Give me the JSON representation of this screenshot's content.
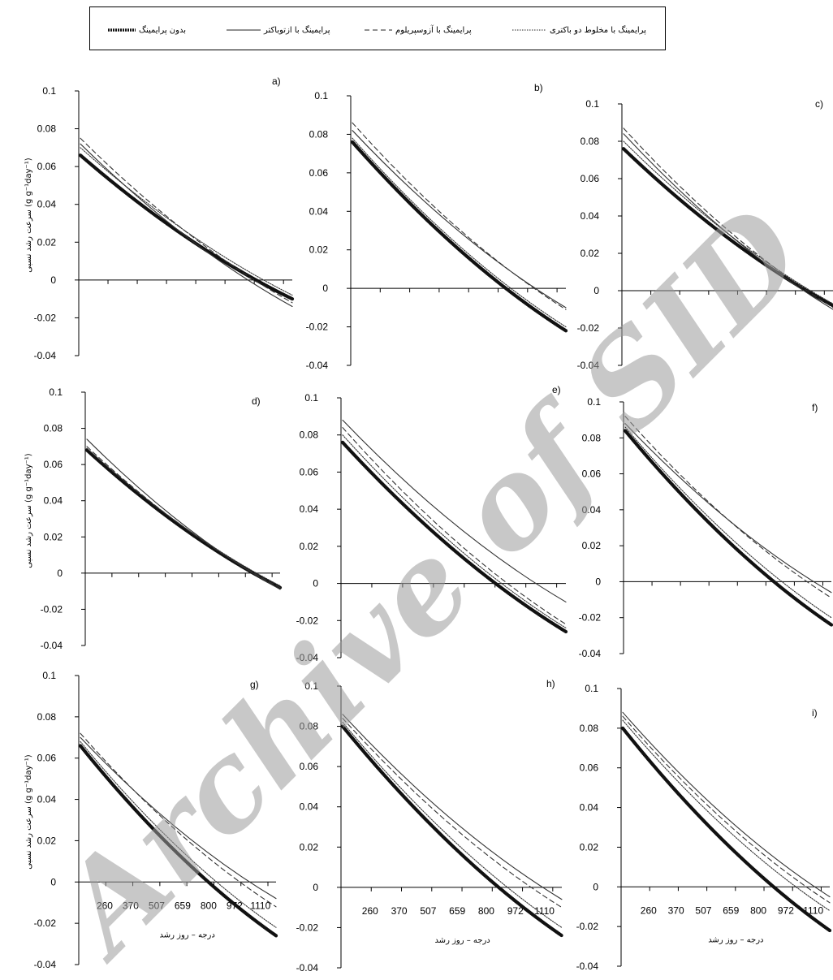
{
  "legend": {
    "items": [
      {
        "label": "پرایمینگ با مخلوط دو باکتری",
        "style": "dotted"
      },
      {
        "label": "پرایمینگ با آزوسپریلوم",
        "style": "dashed"
      },
      {
        "label": "پرایمینگ با ازتوباکتر",
        "style": "solid-thin"
      },
      {
        "label": "بدون پرایمینگ",
        "style": "solid-thick"
      }
    ]
  },
  "y_axis_label": "سرعت رشد نسبی (g g⁻¹day⁻¹)",
  "x_axis_label": "درجه – روز رشد",
  "watermark": "Archive of SID",
  "chart_data": [
    {
      "panel": "a)",
      "type": "line",
      "ylim": [
        -0.04,
        0.1
      ],
      "yticks": [
        "0.1",
        "0.08",
        "0.06",
        "0.04",
        "0.02",
        "0",
        "-0.02",
        "-0.04"
      ],
      "xticks": [],
      "series": [
        {
          "style": "solid-thick",
          "values": [
            0.066,
            -0.01
          ]
        },
        {
          "style": "solid-thin",
          "values": [
            0.072,
            -0.014
          ]
        },
        {
          "style": "dashed",
          "values": [
            0.075,
            -0.012
          ]
        },
        {
          "style": "dotted",
          "values": [
            0.07,
            -0.008
          ]
        }
      ]
    },
    {
      "panel": "b)",
      "type": "line",
      "ylim": [
        -0.04,
        0.1
      ],
      "yticks": [
        "0.1",
        "0.08",
        "0.06",
        "0.04",
        "0.02",
        "0",
        "-0.02",
        "-0.04"
      ],
      "xticks": [],
      "series": [
        {
          "style": "solid-thick",
          "values": [
            0.076,
            -0.022
          ]
        },
        {
          "style": "solid-thin",
          "values": [
            0.082,
            -0.01
          ]
        },
        {
          "style": "dashed",
          "values": [
            0.086,
            -0.011
          ]
        },
        {
          "style": "dotted",
          "values": [
            0.078,
            -0.02
          ]
        }
      ]
    },
    {
      "panel": "c)",
      "type": "line",
      "ylim": [
        -0.04,
        0.1
      ],
      "yticks": [
        "0.1",
        "0.08",
        "0.06",
        "0.04",
        "0.02",
        "0",
        "-0.02",
        "-0.04"
      ],
      "xticks": [],
      "series": [
        {
          "style": "solid-thick",
          "values": [
            0.076,
            -0.008
          ]
        },
        {
          "style": "solid-thin",
          "values": [
            0.084,
            -0.01
          ]
        },
        {
          "style": "dashed",
          "values": [
            0.087,
            -0.009
          ]
        },
        {
          "style": "dotted",
          "values": [
            0.08,
            -0.007
          ]
        }
      ]
    },
    {
      "panel": "d)",
      "type": "line",
      "ylim": [
        -0.04,
        0.1
      ],
      "yticks": [
        "0.1",
        "0.08",
        "0.06",
        "0.04",
        "0.02",
        "0",
        "-0.02",
        "-0.04"
      ],
      "xticks": [],
      "series": [
        {
          "style": "solid-thick",
          "values": [
            0.068,
            -0.008
          ]
        },
        {
          "style": "solid-thin",
          "values": [
            0.074,
            -0.009
          ]
        },
        {
          "style": "dashed",
          "values": [
            0.07,
            -0.008
          ]
        },
        {
          "style": "dotted",
          "values": [
            0.069,
            -0.007
          ]
        }
      ]
    },
    {
      "panel": "e)",
      "type": "line",
      "ylim": [
        -0.04,
        0.1
      ],
      "yticks": [
        "0.1",
        "0.08",
        "0.06",
        "0.04",
        "0.02",
        "0",
        "-0.02",
        "-0.04"
      ],
      "xticks": [],
      "series": [
        {
          "style": "solid-thick",
          "values": [
            0.076,
            -0.026
          ]
        },
        {
          "style": "solid-thin",
          "values": [
            0.088,
            -0.01
          ]
        },
        {
          "style": "dashed",
          "values": [
            0.084,
            -0.022
          ]
        },
        {
          "style": "dotted",
          "values": [
            0.08,
            -0.024
          ]
        }
      ]
    },
    {
      "panel": "f)",
      "type": "line",
      "ylim": [
        -0.04,
        0.1
      ],
      "yticks": [
        "0.1",
        "0.08",
        "0.06",
        "0.04",
        "0.02",
        "0",
        "-0.02",
        "-0.04"
      ],
      "xticks": [],
      "series": [
        {
          "style": "solid-thick",
          "values": [
            0.084,
            -0.024
          ]
        },
        {
          "style": "solid-thin",
          "values": [
            0.088,
            -0.006
          ]
        },
        {
          "style": "dashed",
          "values": [
            0.092,
            -0.009
          ]
        },
        {
          "style": "dotted",
          "values": [
            0.086,
            -0.02
          ]
        }
      ]
    },
    {
      "panel": "g)",
      "type": "line",
      "ylim": [
        -0.04,
        0.1
      ],
      "yticks": [
        "0.1",
        "0.08",
        "0.06",
        "0.04",
        "0.02",
        "0",
        "-0.02",
        "-0.04"
      ],
      "xticks": [
        "260",
        "370",
        "507",
        "659",
        "800",
        "972",
        "1110"
      ],
      "series": [
        {
          "style": "solid-thick",
          "values": [
            0.066,
            -0.026
          ]
        },
        {
          "style": "solid-thin",
          "values": [
            0.07,
            -0.008
          ]
        },
        {
          "style": "dashed",
          "values": [
            0.072,
            -0.012
          ]
        },
        {
          "style": "dotted",
          "values": [
            0.068,
            -0.022
          ]
        }
      ]
    },
    {
      "panel": "h)",
      "type": "line",
      "ylim": [
        -0.04,
        0.1
      ],
      "yticks": [
        "0.1",
        "0.08",
        "0.06",
        "0.04",
        "0.02",
        "0",
        "-0.02",
        "-0.04"
      ],
      "xticks": [
        "260",
        "370",
        "507",
        "659",
        "800",
        "972",
        "1110"
      ],
      "series": [
        {
          "style": "solid-thick",
          "values": [
            0.08,
            -0.024
          ]
        },
        {
          "style": "solid-thin",
          "values": [
            0.086,
            -0.006
          ]
        },
        {
          "style": "dashed",
          "values": [
            0.084,
            -0.01
          ]
        },
        {
          "style": "dotted",
          "values": [
            0.082,
            -0.02
          ]
        }
      ]
    },
    {
      "panel": "i)",
      "type": "line",
      "ylim": [
        -0.04,
        0.1
      ],
      "yticks": [
        "0.1",
        "0.08",
        "0.06",
        "0.04",
        "0.02",
        "0",
        "-0.02",
        "-0.04"
      ],
      "xticks": [
        "260",
        "370",
        "507",
        "659",
        "800",
        "972",
        "1110"
      ],
      "series": [
        {
          "style": "solid-thick",
          "values": [
            0.08,
            -0.022
          ]
        },
        {
          "style": "solid-thin",
          "values": [
            0.088,
            -0.005
          ]
        },
        {
          "style": "dashed",
          "values": [
            0.086,
            -0.008
          ]
        },
        {
          "style": "dotted",
          "values": [
            0.084,
            -0.012
          ]
        }
      ]
    }
  ]
}
